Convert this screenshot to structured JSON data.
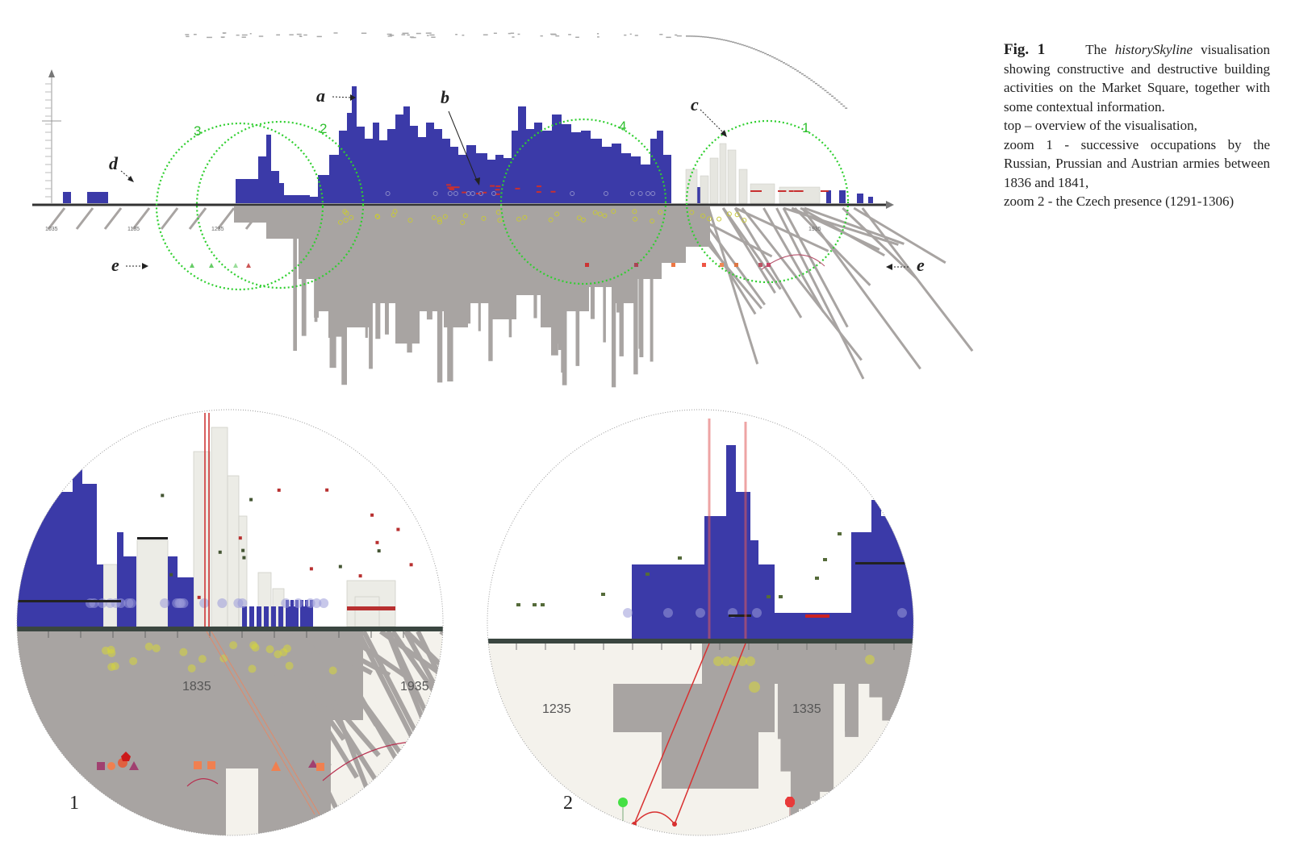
{
  "caption": {
    "fig_label": "Fig. 1",
    "text_before": "The",
    "tool_name": "historySkyline",
    "text_after": "visualisation showing constructive and destructive building activities on the Market Square, together with some contextual information.",
    "line_top": "top – overview of the visualisation,",
    "line_zoom1": "zoom 1 - successive occupations by the Russian, Prussian and Austrian armies between 1836 and 1841,",
    "line_zoom2": "zoom 2 - the Czech presence (1291-1306)"
  },
  "overview": {
    "annotations": {
      "a": "a",
      "b": "b",
      "c": "c",
      "d": "d",
      "e_left": "e",
      "e_right": "e"
    },
    "zoom_circle_labels": [
      "1",
      "2",
      "3",
      "4"
    ],
    "tick_labels": [
      "1035",
      "1135",
      "1235",
      "1935"
    ]
  },
  "zoom1": {
    "number": "1",
    "tick_labels": [
      "1835",
      "1935"
    ]
  },
  "zoom2": {
    "number": "2",
    "tick_labels": [
      "1235",
      "1335"
    ]
  },
  "colors": {
    "construction": "#3b3aa8",
    "destruction_shadow": "#a8a4a2",
    "zoom_circle": "#2fcf2f",
    "event_red": "#d83a3a",
    "event_yellow": "#d6d63a",
    "background_cream": "#f4f2ec"
  }
}
